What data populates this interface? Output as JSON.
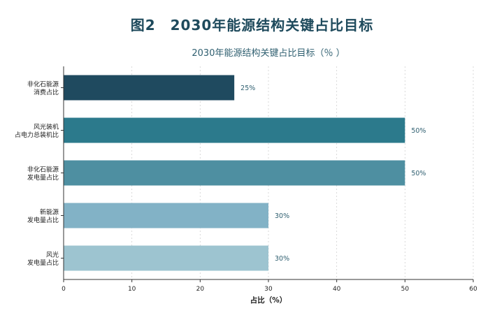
{
  "figure_title": "图2　2030年能源结构关键占比目标",
  "chart_data": {
    "type": "bar",
    "orientation": "horizontal",
    "title": "2030年能源结构关键占比目标（％ ）",
    "xlabel": "占比（%）",
    "ylabel": "",
    "xlim": [
      0,
      60
    ],
    "xticks": [
      0,
      10,
      20,
      30,
      40,
      50,
      60
    ],
    "grid": "vertical-dotted",
    "categories": [
      [
        "非化石能源",
        "消费占比"
      ],
      [
        "风光装机",
        "占电力总装机比"
      ],
      [
        "非化石能源",
        "发电量占比"
      ],
      [
        "新能源",
        "发电量占比"
      ],
      [
        "风光",
        "发电量占比"
      ]
    ],
    "values": [
      25,
      50,
      50,
      30,
      30
    ],
    "value_labels": [
      "25%",
      "50%",
      "50%",
      "30%",
      "30%"
    ],
    "colors": [
      "#1f4a5f",
      "#2c7a8c",
      "#4e8fa1",
      "#82b2c6",
      "#9dc4d0"
    ]
  }
}
